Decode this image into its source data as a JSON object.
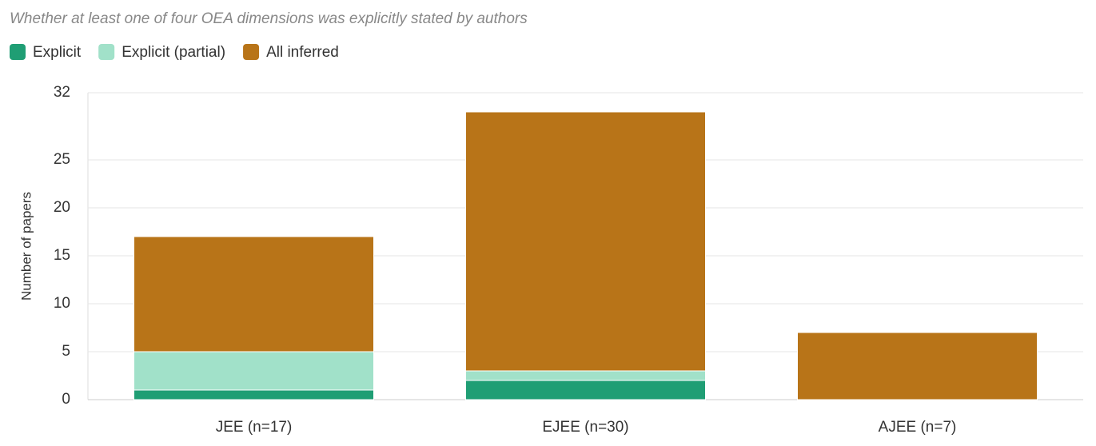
{
  "chart_data": {
    "type": "stacked_bar",
    "subtitle": "Whether at least one of four OEA dimensions was explicitly stated by authors",
    "y_label": "Number of papers",
    "categories": [
      "JEE (n=17)",
      "EJEE (n=30)",
      "AJEE (n=7)"
    ],
    "series": [
      {
        "name": "Explicit",
        "color": "#1f9e74",
        "values": [
          1,
          2,
          0
        ]
      },
      {
        "name": "Explicit (partial)",
        "color": "#a1e1c9",
        "values": [
          4,
          1,
          0
        ]
      },
      {
        "name": "All inferred",
        "color": "#b87418",
        "values": [
          12,
          27,
          7
        ]
      }
    ],
    "ylim": [
      0,
      32
    ],
    "yticks": [
      0,
      5,
      10,
      15,
      20,
      25,
      32
    ],
    "grid": true,
    "legend": "top-left"
  }
}
